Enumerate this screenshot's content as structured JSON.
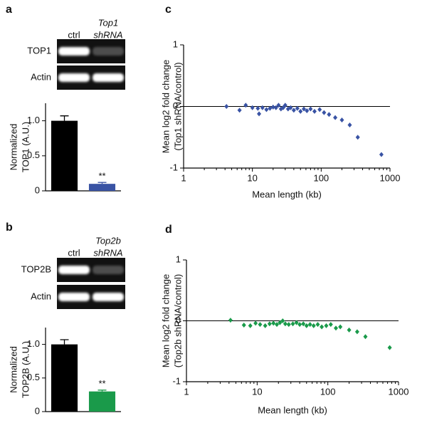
{
  "chart_data": [
    {
      "type": "bar",
      "panel": "a",
      "lane_labels": [
        [
          "ctrl"
        ],
        [
          "Top1",
          "shRNA"
        ]
      ],
      "blots": [
        "TOP1",
        "Actin"
      ],
      "categories": [
        null,
        null
      ],
      "values": [
        1.0,
        0.1
      ],
      "errors": [
        0.07,
        0.02
      ],
      "colors": [
        "#000000",
        "#3953a4"
      ],
      "annotation": "**",
      "ylabel": [
        "Normalized",
        "TOP1 (A.U.)"
      ],
      "ylim": [
        0,
        1.25
      ],
      "yticks": [
        0,
        0.5,
        {
          "value": 1,
          "label": "1.0"
        }
      ]
    },
    {
      "type": "bar",
      "panel": "b",
      "lane_labels": [
        [
          "ctrl"
        ],
        [
          "Top2b",
          "shRNA"
        ]
      ],
      "blots": [
        "TOP2B",
        "Actin"
      ],
      "categories": [
        null,
        null
      ],
      "values": [
        1.0,
        0.3
      ],
      "errors": [
        0.07,
        0.02
      ],
      "colors": [
        "#000000",
        "#1a9a4a"
      ],
      "annotation": "**",
      "ylabel": [
        "Normalized",
        "TOP2B (A.U.)"
      ],
      "ylim": [
        0,
        1.25
      ],
      "yticks": [
        0,
        0.5,
        {
          "value": 1,
          "label": "1.0"
        }
      ]
    },
    {
      "type": "scatter",
      "panel": "c",
      "xscale": "log",
      "color": "#3953a4",
      "x": [
        4.2,
        6.5,
        8,
        10,
        12,
        12.5,
        14,
        16,
        18,
        20,
        22,
        24,
        26,
        28,
        30,
        33,
        36,
        40,
        45,
        50,
        56,
        62,
        70,
        80,
        95,
        110,
        130,
        160,
        200,
        260,
        340,
        750
      ],
      "values": [
        0,
        -0.06,
        0.02,
        -0.02,
        -0.03,
        -0.12,
        -0.02,
        -0.05,
        -0.03,
        -0.01,
        -0.02,
        0.02,
        -0.04,
        -0.02,
        0.02,
        -0.04,
        -0.02,
        -0.06,
        -0.03,
        -0.08,
        -0.04,
        -0.07,
        -0.04,
        -0.08,
        -0.05,
        -0.1,
        -0.13,
        -0.18,
        -0.22,
        -0.3,
        -0.5,
        -0.78
      ],
      "xlabel": "Mean length (kb)",
      "ylabel": [
        "Mean log2 fold change",
        "(Top1 shRNA/control)"
      ],
      "xlim": [
        1,
        1000
      ],
      "xticks": [
        1,
        10,
        100,
        1000
      ],
      "ylim": [
        -1,
        1
      ],
      "yticks": [
        -1,
        0,
        1
      ],
      "hline": 0
    },
    {
      "type": "scatter",
      "panel": "d",
      "xscale": "log",
      "color": "#1a9a4a",
      "x": [
        4.2,
        6.5,
        8,
        9.5,
        11,
        13,
        15,
        17,
        19,
        21,
        23,
        25,
        28,
        32,
        36,
        40,
        45,
        50,
        56,
        63,
        72,
        82,
        95,
        110,
        130,
        150,
        200,
        260,
        340,
        750
      ],
      "values": [
        0.01,
        -0.07,
        -0.08,
        -0.04,
        -0.06,
        -0.08,
        -0.05,
        -0.04,
        -0.06,
        -0.03,
        0,
        -0.05,
        -0.06,
        -0.05,
        -0.03,
        -0.06,
        -0.05,
        -0.08,
        -0.06,
        -0.08,
        -0.06,
        -0.1,
        -0.08,
        -0.06,
        -0.12,
        -0.1,
        -0.15,
        -0.18,
        -0.26,
        -0.44
      ],
      "xlabel": "Mean length (kb)",
      "ylabel": [
        "Mean log2 fold change",
        "(Top2b shRNA/control)"
      ],
      "xlim": [
        1,
        1000
      ],
      "xticks": [
        1,
        10,
        100,
        1000
      ],
      "ylim": [
        -1,
        1
      ],
      "yticks": [
        -1,
        0,
        1
      ],
      "hline": 0
    }
  ]
}
